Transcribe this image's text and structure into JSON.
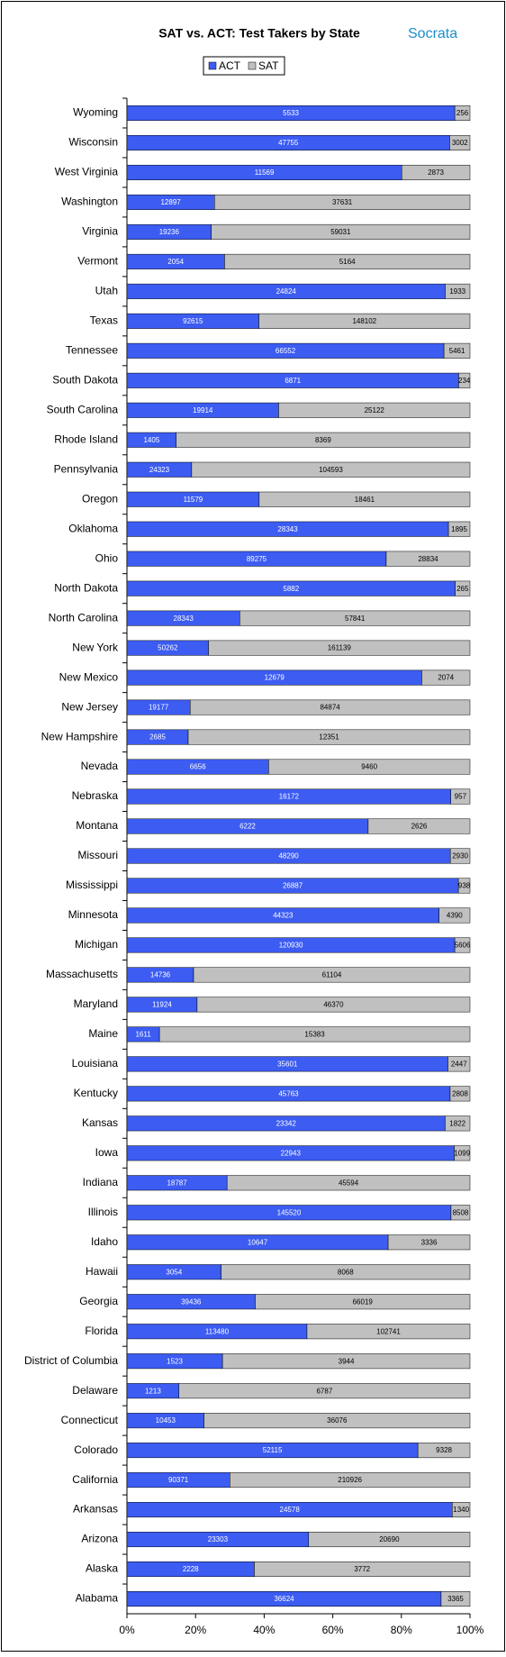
{
  "chart_data": {
    "type": "stacked-bar-100",
    "title": "SAT vs. ACT: Test Takers by State",
    "logo": "Socrata",
    "categories": [
      "Wyoming",
      "Wisconsin",
      "West Virginia",
      "Washington",
      "Virginia",
      "Vermont",
      "Utah",
      "Texas",
      "Tennessee",
      "South Dakota",
      "South Carolina",
      "Rhode Island",
      "Pennsylvania",
      "Oregon",
      "Oklahoma",
      "Ohio",
      "North Dakota",
      "North Carolina",
      "New York",
      "New Mexico",
      "New Jersey",
      "New Hampshire",
      "Nevada",
      "Nebraska",
      "Montana",
      "Missouri",
      "Mississippi",
      "Minnesota",
      "Michigan",
      "Massachusetts",
      "Maryland",
      "Maine",
      "Louisiana",
      "Kentucky",
      "Kansas",
      "Iowa",
      "Indiana",
      "Illinois",
      "Idaho",
      "Hawaii",
      "Georgia",
      "Florida",
      "District of Columbia",
      "Delaware",
      "Connecticut",
      "Colorado",
      "California",
      "Arkansas",
      "Arizona",
      "Alaska",
      "Alabama"
    ],
    "series": [
      {
        "name": "ACT",
        "color": "#3c5cf2",
        "label_color": "#ffffff",
        "values": [
          5533,
          47755,
          11569,
          12897,
          19236,
          2054,
          24824,
          92615,
          66552,
          6871,
          19914,
          1405,
          24323,
          11579,
          28343,
          89275,
          5882,
          28343,
          50262,
          12679,
          19177,
          2685,
          6656,
          16172,
          6222,
          48290,
          26887,
          44323,
          120930,
          14736,
          11924,
          1611,
          35601,
          45763,
          23342,
          22943,
          18787,
          145520,
          10647,
          3054,
          39436,
          113480,
          1523,
          1213,
          10453,
          52115,
          90371,
          24578,
          23303,
          2228,
          36624
        ]
      },
      {
        "name": "SAT",
        "color": "#c0c0c0",
        "label_color": "#000000",
        "values": [
          256,
          3002,
          2873,
          37631,
          59031,
          5164,
          1933,
          148102,
          5461,
          234,
          25122,
          8369,
          104593,
          18461,
          1895,
          28834,
          265,
          57841,
          161139,
          2074,
          84874,
          12351,
          9460,
          957,
          2626,
          2930,
          938,
          4390,
          5606,
          61104,
          46370,
          15383,
          2447,
          2808,
          1822,
          1099,
          45594,
          8508,
          3336,
          8068,
          66019,
          102741,
          3944,
          6787,
          36076,
          9328,
          210926,
          1340,
          20690,
          3772,
          3365
        ]
      }
    ],
    "xlim": [
      0,
      100
    ],
    "xticks": [
      {
        "value": 0,
        "label": "0%"
      },
      {
        "value": 20,
        "label": "20%"
      },
      {
        "value": 40,
        "label": "40%"
      },
      {
        "value": 60,
        "label": "60%"
      },
      {
        "value": 80,
        "label": "80%"
      },
      {
        "value": 100,
        "label": "100%"
      }
    ],
    "legend": "top"
  }
}
